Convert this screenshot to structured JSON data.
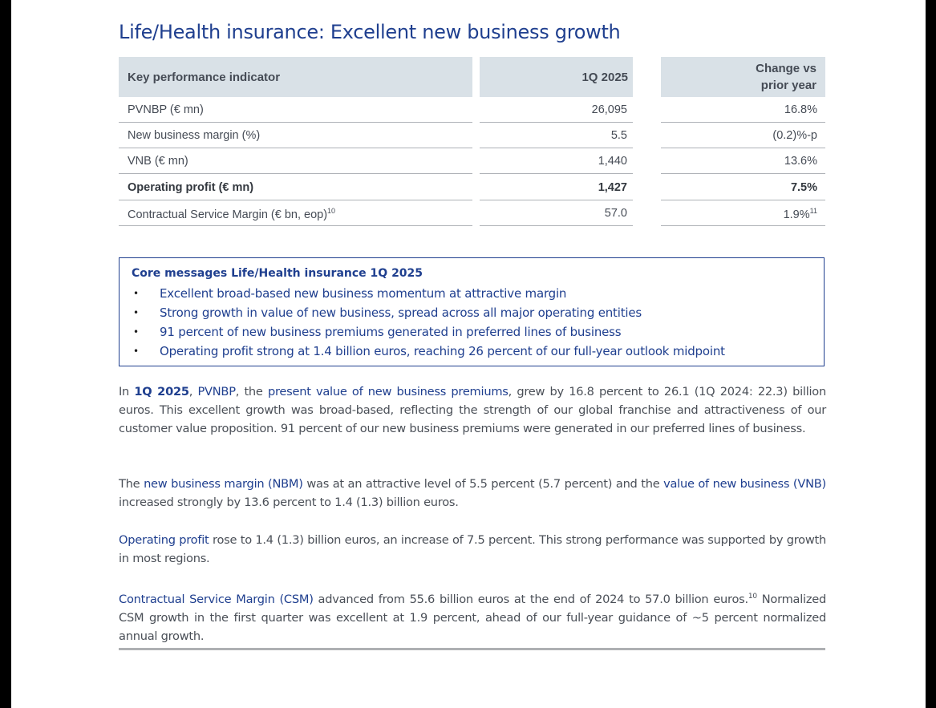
{
  "title": "Life/Health insurance: Excellent new business growth",
  "kpi_table": {
    "headers": {
      "kpi": "Key performance indicator",
      "period": "1Q 2025",
      "change_line1": "Change vs",
      "change_line2": "prior year"
    },
    "rows": [
      {
        "label": "PVNBP (€ mn)",
        "value": "26,095",
        "change": "16.8%",
        "label_sup": "",
        "change_sup": ""
      },
      {
        "label": "New business margin (%)",
        "value": "5.5",
        "change": "(0.2)%-p",
        "label_sup": "",
        "change_sup": ""
      },
      {
        "label": "VNB (€ mn)",
        "value": "1,440",
        "change": "13.6%",
        "label_sup": "",
        "change_sup": ""
      },
      {
        "label": "Operating profit (€ mn)",
        "value": "1,427",
        "change": "7.5%",
        "label_sup": "",
        "change_sup": ""
      },
      {
        "label": "Contractual Service Margin (€ bn, eop)",
        "value": "57.0",
        "change": "1.9%",
        "label_sup": "10",
        "change_sup": "11"
      }
    ]
  },
  "core_messages": {
    "title": "Core messages Life/Health insurance 1Q 2025",
    "bullet": "•",
    "items": [
      "Excellent broad-based new business momentum at attractive margin",
      "Strong growth in value of new business, spread across all major operating entities",
      "91 percent of new business premiums generated in preferred lines of business",
      "Operating profit strong at 1.4 billion euros, reaching 26 percent of our full-year outlook midpoint"
    ]
  },
  "paragraphs": {
    "p1": {
      "t1": "In ",
      "period": "1Q 2025",
      "t2": ", ",
      "pvnbp": "PVNBP",
      "t3": ", the ",
      "pvnbp_long": "present value of new business premiums",
      "t4": ", grew by 16.8 percent to 26.1 (1Q 2024: 22.3) billion euros. This excellent growth was broad-based, reflecting the strength of our global franchise and attractiveness of our customer value proposition. 91 percent of our new business premiums were generated in our preferred lines of business."
    },
    "p2": {
      "t1": "The ",
      "nbm": "new business margin (NBM)",
      "t2": " was at an attractive level of 5.5 percent (5.7 percent) and the ",
      "vnb": "value of new business (VNB)",
      "t3": " increased strongly by 13.6 percent to 1.4 (1.3) billion euros."
    },
    "p3": {
      "op": "Operating profit",
      "t1": " rose to 1.4 (1.3) billion euros, an increase of 7.5 percent. This strong performance was supported by growth in most regions."
    },
    "p4": {
      "csm": "Contractual Service Margin (CSM)",
      "t1": " advanced from 55.6 billion euros at the end of 2024 to 57.0 billion euros.",
      "sup": "10",
      "t2": " Normalized CSM growth in the first quarter was excellent at 1.9 percent, ahead of our full-year guidance of ~5 percent normalized annual growth."
    }
  }
}
